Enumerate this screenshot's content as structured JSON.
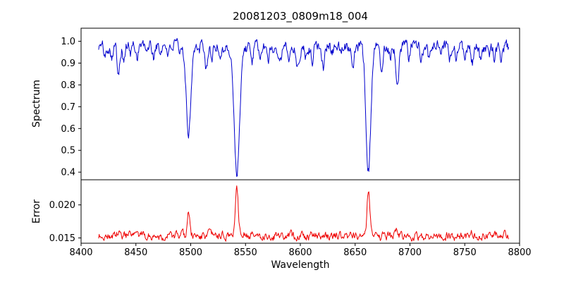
{
  "chart_data": {
    "type": "line",
    "title": "20081203_0809m18_004",
    "xlabel": "Wavelength",
    "xlim": [
      8400,
      8800
    ],
    "xticks": [
      8400,
      8450,
      8500,
      8550,
      8600,
      8650,
      8700,
      8750,
      8800
    ],
    "xtick_labels": [
      "8400",
      "8450",
      "8500",
      "8550",
      "8600",
      "8650",
      "8700",
      "8750",
      "8800"
    ],
    "grid": false,
    "legend": "none",
    "panels": [
      {
        "name": "spectrum",
        "ylabel": "Spectrum",
        "color": "#0000cd",
        "ylim": [
          0.365,
          1.06
        ],
        "yticks": [
          0.4,
          0.5,
          0.6,
          0.7,
          0.8,
          0.9,
          1.0
        ],
        "ytick_labels": [
          "0.4",
          "0.5",
          "0.6",
          "0.7",
          "0.8",
          "0.9",
          "1.0"
        ],
        "x_range": [
          8416,
          8790
        ],
        "x_step": 0.5,
        "continuum": 0.975,
        "noise_amplitude": 0.045,
        "absorption_lines": [
          [
            8422,
            0.05,
            1.0
          ],
          [
            8428,
            0.04,
            0.9
          ],
          [
            8434,
            0.11,
            1.2
          ],
          [
            8439,
            0.07,
            1.0
          ],
          [
            8445,
            0.04,
            0.9
          ],
          [
            8451,
            0.05,
            0.9
          ],
          [
            8459,
            0.04,
            0.9
          ],
          [
            8466,
            0.06,
            1.0
          ],
          [
            8472,
            0.04,
            0.9
          ],
          [
            8480,
            0.04,
            0.9
          ],
          [
            8490,
            0.05,
            0.9
          ],
          [
            8498.0,
            0.4,
            2.0
          ],
          [
            8507,
            0.04,
            0.9
          ],
          [
            8514,
            0.1,
            1.2
          ],
          [
            8519,
            0.06,
            1.0
          ],
          [
            8527,
            0.04,
            0.9
          ],
          [
            8536,
            0.04,
            0.9
          ],
          [
            8542.1,
            0.575,
            2.4
          ],
          [
            8556,
            0.06,
            1.0
          ],
          [
            8564,
            0.04,
            0.9
          ],
          [
            8571,
            0.04,
            0.9
          ],
          [
            8582,
            0.05,
            1.0
          ],
          [
            8590,
            0.04,
            0.9
          ],
          [
            8598,
            0.1,
            1.2
          ],
          [
            8605,
            0.04,
            0.9
          ],
          [
            8611,
            0.06,
            1.0
          ],
          [
            8621,
            0.08,
            1.1
          ],
          [
            8629,
            0.04,
            0.9
          ],
          [
            8637,
            0.04,
            0.9
          ],
          [
            8648,
            0.07,
            1.0
          ],
          [
            8662.1,
            0.565,
            2.2
          ],
          [
            8674,
            0.1,
            1.2
          ],
          [
            8682,
            0.05,
            0.9
          ],
          [
            8688.6,
            0.18,
            1.4
          ],
          [
            8699,
            0.05,
            0.9
          ],
          [
            8710,
            0.06,
            1.0
          ],
          [
            8717,
            0.05,
            0.9
          ],
          [
            8728,
            0.05,
            0.9
          ],
          [
            8736,
            0.06,
            1.0
          ],
          [
            8742,
            0.05,
            0.9
          ],
          [
            8750,
            0.04,
            0.9
          ],
          [
            8757,
            0.07,
            1.0
          ],
          [
            8764,
            0.05,
            0.9
          ],
          [
            8772,
            0.04,
            0.9
          ],
          [
            8777,
            0.05,
            0.9
          ],
          [
            8783,
            0.04,
            0.9
          ]
        ]
      },
      {
        "name": "error",
        "ylabel": "Error",
        "color": "#ee0000",
        "ylim": [
          0.0142,
          0.0238
        ],
        "yticks": [
          0.015,
          0.02
        ],
        "ytick_labels": [
          "0.015",
          "0.020"
        ],
        "x_range": [
          8416,
          8790
        ],
        "x_step": 0.5,
        "baseline": 0.0153,
        "noise_amplitude": 0.001,
        "emission_peaks": [
          [
            8434,
            0.0005,
            1.0
          ],
          [
            8498,
            0.0038,
            1.1
          ],
          [
            8516,
            0.0005,
            1.0
          ],
          [
            8542,
            0.0072,
            1.3
          ],
          [
            8546,
            0.0007,
            3.0
          ],
          [
            8662,
            0.0068,
            1.2
          ],
          [
            8666,
            0.0006,
            2.5
          ],
          [
            8688,
            0.0008,
            1.0
          ],
          [
            8757,
            0.0004,
            0.9
          ]
        ]
      }
    ]
  }
}
